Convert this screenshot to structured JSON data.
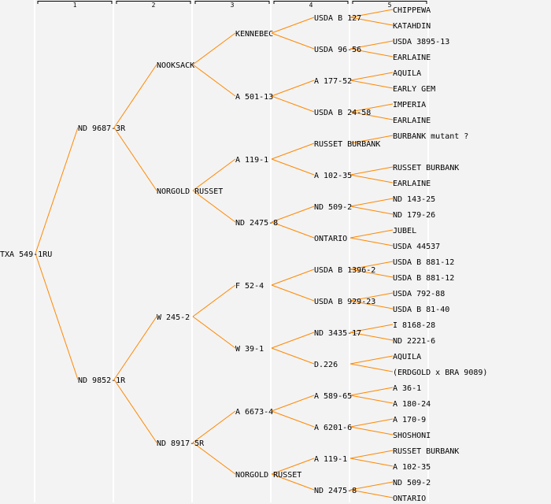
{
  "header": {
    "generations": [
      "1",
      "2",
      "3",
      "4",
      "5"
    ]
  },
  "colors": {
    "line": "#ff8800",
    "background": "#f3f3f3",
    "grid": "#ffffff"
  },
  "tree": {
    "name": "TXA 549-1RU",
    "children": [
      {
        "name": "ND 9687-3R",
        "children": [
          {
            "name": "NOOKSACK",
            "children": [
              {
                "name": "KENNEBEC",
                "children": [
                  {
                    "name": "USDA B 127",
                    "children": [
                      {
                        "name": "CHIPPEWA"
                      },
                      {
                        "name": "KATAHDIN"
                      }
                    ]
                  },
                  {
                    "name": "USDA 96-56",
                    "children": [
                      {
                        "name": "USDA 3895-13"
                      },
                      {
                        "name": "EARLAINE"
                      }
                    ]
                  }
                ]
              },
              {
                "name": "A 501-13",
                "children": [
                  {
                    "name": "A 177-52",
                    "children": [
                      {
                        "name": "AQUILA"
                      },
                      {
                        "name": "EARLY GEM"
                      }
                    ]
                  },
                  {
                    "name": "USDA B 24-58",
                    "children": [
                      {
                        "name": "IMPERIA"
                      },
                      {
                        "name": "EARLAINE"
                      }
                    ]
                  }
                ]
              }
            ]
          },
          {
            "name": "NORGOLD RUSSET",
            "children": [
              {
                "name": "A 119-1",
                "children": [
                  {
                    "name": "RUSSET BURBANK",
                    "children": [
                      {
                        "name": "BURBANK mutant ?"
                      },
                      null
                    ]
                  },
                  {
                    "name": "A 102-35",
                    "children": [
                      {
                        "name": "RUSSET BURBANK"
                      },
                      {
                        "name": "EARLAINE"
                      }
                    ]
                  }
                ]
              },
              {
                "name": "ND 2475-8",
                "children": [
                  {
                    "name": "ND 509-2",
                    "children": [
                      {
                        "name": "ND 143-25"
                      },
                      {
                        "name": "ND 179-26"
                      }
                    ]
                  },
                  {
                    "name": "ONTARIO",
                    "children": [
                      {
                        "name": "JUBEL"
                      },
                      {
                        "name": "USDA 44537"
                      }
                    ]
                  }
                ]
              }
            ]
          }
        ]
      },
      {
        "name": "ND 9852-1R",
        "children": [
          {
            "name": "W 245-2",
            "children": [
              {
                "name": "F 52-4",
                "children": [
                  {
                    "name": "USDA B 1396-2",
                    "children": [
                      {
                        "name": "USDA B 881-12"
                      },
                      {
                        "name": "USDA B 881-12"
                      }
                    ]
                  },
                  {
                    "name": "USDA B 929-23",
                    "children": [
                      {
                        "name": "USDA 792-88"
                      },
                      {
                        "name": "USDA B 81-40"
                      }
                    ]
                  }
                ]
              },
              {
                "name": "W 39-1",
                "children": [
                  {
                    "name": "ND 3435-17",
                    "children": [
                      {
                        "name": "I 8168-28"
                      },
                      {
                        "name": "ND 2221-6"
                      }
                    ]
                  },
                  {
                    "name": "D.226",
                    "children": [
                      {
                        "name": "AQUILA"
                      },
                      {
                        "name": "(ERDGOLD x BRA 9089)"
                      }
                    ]
                  }
                ]
              }
            ]
          },
          {
            "name": "ND 8917-5R",
            "children": [
              {
                "name": "A 6673-4",
                "children": [
                  {
                    "name": "A 589-65",
                    "children": [
                      {
                        "name": "A 36-1"
                      },
                      {
                        "name": "A 180-24"
                      }
                    ]
                  },
                  {
                    "name": "A 6201-6",
                    "children": [
                      {
                        "name": "A 170-9"
                      },
                      {
                        "name": "SHOSHONI"
                      }
                    ]
                  }
                ]
              },
              {
                "name": "NORGOLD RUSSET",
                "children": [
                  {
                    "name": "A 119-1",
                    "children": [
                      {
                        "name": "RUSSET BURBANK"
                      },
                      {
                        "name": "A 102-35"
                      }
                    ]
                  },
                  {
                    "name": "ND 2475-8",
                    "children": [
                      {
                        "name": "ND 509-2"
                      },
                      {
                        "name": "ONTARIO"
                      }
                    ]
                  }
                ]
              }
            ]
          }
        ]
      }
    ]
  }
}
